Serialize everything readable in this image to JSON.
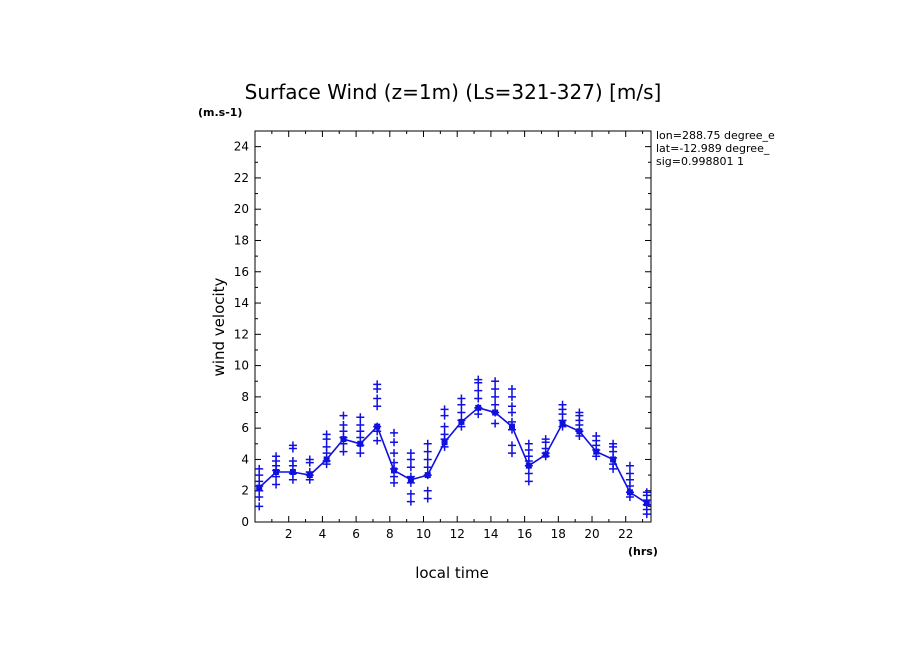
{
  "chart_data": {
    "type": "line",
    "title": "Surface Wind (z=1m) (Ls=321-327) [m/s]",
    "y_units": "(m.s-1)",
    "x_units": "(hrs)",
    "xlabel": "local time",
    "ylabel": "wind velocity",
    "xlim": [
      0,
      23.5
    ],
    "ylim": [
      0,
      25
    ],
    "x_ticks": [
      "2",
      "4",
      "6",
      "8",
      "10",
      "12",
      "14",
      "16",
      "18",
      "20",
      "22"
    ],
    "y_ticks": [
      "0",
      "2",
      "4",
      "6",
      "8",
      "10",
      "12",
      "14",
      "16",
      "18",
      "20",
      "22",
      "24"
    ],
    "info": [
      "lon=288.75 degree_e",
      "lat=-12.989 degree_",
      "sig=0.998801 1"
    ],
    "color": "#1010e0",
    "mean_series": {
      "x": [
        0.25,
        1.25,
        2.25,
        3.25,
        4.25,
        5.25,
        6.25,
        7.25,
        8.25,
        9.25,
        10.25,
        11.25,
        12.25,
        13.25,
        14.25,
        15.25,
        16.25,
        17.25,
        18.25,
        19.25,
        20.25,
        21.25,
        22.25,
        23.25
      ],
      "y": [
        2.2,
        3.2,
        3.2,
        3.0,
        4.0,
        5.3,
        5.0,
        6.1,
        3.3,
        2.7,
        3.0,
        5.1,
        6.4,
        7.3,
        7.0,
        6.1,
        3.6,
        4.3,
        6.3,
        5.8,
        4.5,
        4.0,
        1.9,
        1.2
      ]
    },
    "samples": [
      [
        0.25,
        [
          1.0,
          1.6,
          2.0,
          2.3,
          2.6,
          3.0,
          3.4
        ]
      ],
      [
        1.25,
        [
          2.4,
          2.9,
          3.3,
          3.6,
          3.9,
          4.2
        ]
      ],
      [
        2.25,
        [
          2.7,
          3.1,
          3.6,
          3.9,
          4.7,
          4.9
        ]
      ],
      [
        3.25,
        [
          2.7,
          3.0,
          3.2,
          3.8,
          4.0
        ]
      ],
      [
        4.25,
        [
          3.7,
          3.9,
          4.4,
          4.8,
          5.3,
          5.6
        ]
      ],
      [
        5.25,
        [
          4.5,
          5.0,
          5.4,
          5.8,
          6.2,
          6.8
        ]
      ],
      [
        6.25,
        [
          4.4,
          4.9,
          5.4,
          5.8,
          6.2,
          6.7
        ]
      ],
      [
        7.25,
        [
          5.2,
          5.8,
          6.1,
          7.4,
          7.9,
          8.5,
          8.8
        ]
      ],
      [
        8.25,
        [
          2.5,
          2.9,
          3.4,
          3.8,
          4.4,
          5.1,
          5.7
        ]
      ],
      [
        9.25,
        [
          1.3,
          1.8,
          2.5,
          2.9,
          3.5,
          4.0,
          4.4
        ]
      ],
      [
        10.25,
        [
          1.5,
          2.0,
          3.0,
          3.5,
          4.0,
          4.5,
          5.0
        ]
      ],
      [
        11.25,
        [
          4.8,
          5.3,
          5.6,
          6.1,
          6.8,
          7.2
        ]
      ],
      [
        12.25,
        [
          6.1,
          6.5,
          7.0,
          7.5,
          7.9
        ]
      ],
      [
        13.25,
        [
          6.9,
          7.3,
          7.9,
          8.4,
          8.9,
          9.1
        ]
      ],
      [
        14.25,
        [
          6.3,
          7.0,
          7.5,
          8.0,
          8.5,
          9.0
        ]
      ],
      [
        15.25,
        [
          4.4,
          4.9,
          5.9,
          6.4,
          7.0,
          7.4,
          8.0,
          8.5
        ]
      ],
      [
        16.25,
        [
          2.6,
          3.1,
          3.6,
          3.9,
          4.2,
          4.6,
          5.0
        ]
      ],
      [
        17.25,
        [
          4.2,
          4.4,
          4.7,
          5.1,
          5.3
        ]
      ],
      [
        18.25,
        [
          6.1,
          6.5,
          6.9,
          7.2,
          7.5
        ]
      ],
      [
        19.25,
        [
          5.5,
          5.8,
          6.2,
          6.5,
          6.8,
          7.0
        ]
      ],
      [
        20.25,
        [
          4.2,
          4.6,
          4.9,
          5.2,
          5.5
        ]
      ],
      [
        21.25,
        [
          3.4,
          3.7,
          4.1,
          4.5,
          4.8,
          5.0
        ]
      ],
      [
        22.25,
        [
          1.6,
          1.9,
          2.3,
          2.7,
          3.1,
          3.6
        ]
      ],
      [
        23.25,
        [
          0.5,
          0.8,
          1.1,
          1.4,
          1.7,
          1.9
        ]
      ]
    ]
  }
}
